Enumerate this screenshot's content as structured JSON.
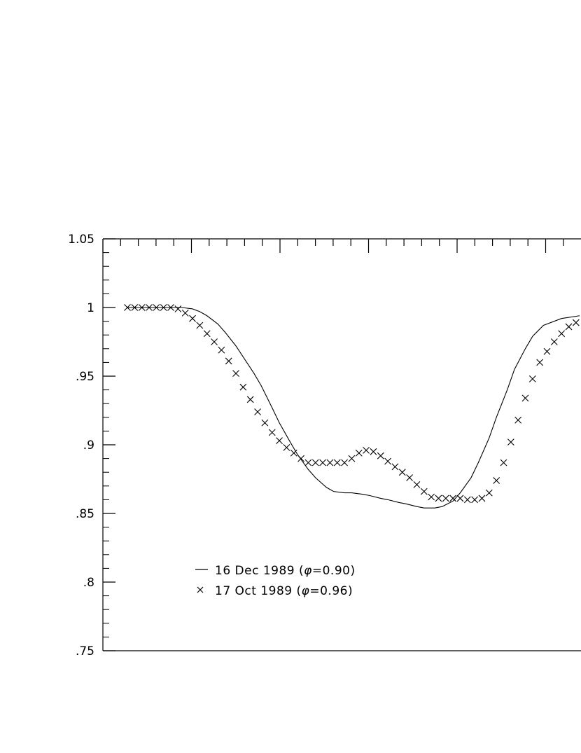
{
  "chart_data": {
    "type": "line",
    "title": "",
    "xlabel": "",
    "ylabel": "",
    "ylim": [
      0.75,
      1.05
    ],
    "y_ticks": [
      {
        "value": 1.05,
        "label": "1.05"
      },
      {
        "value": 1.0,
        "label": "1"
      },
      {
        "value": 0.95,
        "label": ".95"
      },
      {
        "value": 0.9,
        "label": ".9"
      },
      {
        "value": 0.85,
        "label": ".85"
      },
      {
        "value": 0.8,
        "label": ".8"
      },
      {
        "value": 0.75,
        "label": ".75"
      }
    ],
    "grid": false,
    "legend": {
      "placement": "lower-left",
      "entries": [
        {
          "marker": "line",
          "text": "16 Dec 1989 (",
          "symbol": "φ",
          "suffix": "=0.90)"
        },
        {
          "marker": "x",
          "text": "17 Oct 1989 (",
          "symbol": "φ",
          "suffix": "=0.96)"
        }
      ]
    },
    "series": [
      {
        "name": "16 Dec 1989 (φ=0.90)",
        "style": "line",
        "x": [
          0,
          5,
          10,
          15,
          18,
          20,
          22,
          25,
          27,
          30,
          35,
          37,
          40,
          42,
          45,
          47,
          50,
          52,
          55,
          57,
          60,
          62,
          65,
          67,
          70,
          72,
          75,
          77,
          80,
          82,
          85,
          87,
          90,
          92,
          95,
          97,
          100,
          102,
          105,
          107,
          110,
          112,
          115,
          120,
          125
        ],
        "y": [
          1.0,
          1.0,
          1.0,
          1.0,
          0.999,
          0.997,
          0.994,
          0.988,
          0.982,
          0.972,
          0.952,
          0.943,
          0.927,
          0.916,
          0.902,
          0.893,
          0.882,
          0.876,
          0.869,
          0.866,
          0.865,
          0.865,
          0.864,
          0.863,
          0.861,
          0.86,
          0.858,
          0.857,
          0.855,
          0.854,
          0.854,
          0.855,
          0.859,
          0.865,
          0.876,
          0.887,
          0.905,
          0.92,
          0.94,
          0.955,
          0.97,
          0.979,
          0.987,
          0.992,
          0.994
        ]
      },
      {
        "name": "17 Oct 1989 (φ=0.96)",
        "style": "x",
        "x": [
          0,
          2,
          4,
          6,
          8,
          10,
          12,
          14,
          16,
          18,
          20,
          22,
          24,
          26,
          28,
          30,
          32,
          34,
          36,
          38,
          40,
          42,
          44,
          46,
          48,
          50,
          52,
          54,
          56,
          58,
          60,
          62,
          64,
          66,
          68,
          70,
          72,
          74,
          76,
          78,
          80,
          82,
          84,
          86,
          88,
          90,
          92,
          94,
          96,
          98,
          100,
          102,
          104,
          106,
          108,
          110,
          112,
          114,
          116,
          118,
          120,
          122,
          124
        ],
        "y": [
          1.0,
          1.0,
          1.0,
          1.0,
          1.0,
          1.0,
          1.0,
          0.999,
          0.996,
          0.992,
          0.987,
          0.981,
          0.975,
          0.969,
          0.961,
          0.952,
          0.942,
          0.933,
          0.924,
          0.916,
          0.909,
          0.903,
          0.898,
          0.894,
          0.89,
          0.887,
          0.887,
          0.887,
          0.887,
          0.887,
          0.887,
          0.89,
          0.894,
          0.896,
          0.895,
          0.892,
          0.888,
          0.884,
          0.88,
          0.876,
          0.871,
          0.866,
          0.862,
          0.861,
          0.861,
          0.861,
          0.861,
          0.86,
          0.86,
          0.861,
          0.865,
          0.874,
          0.887,
          0.902,
          0.918,
          0.934,
          0.948,
          0.96,
          0.968,
          0.975,
          0.981,
          0.986,
          0.989
        ]
      }
    ],
    "x_major_tick_count": 11,
    "x_minor_per_major": 5
  }
}
